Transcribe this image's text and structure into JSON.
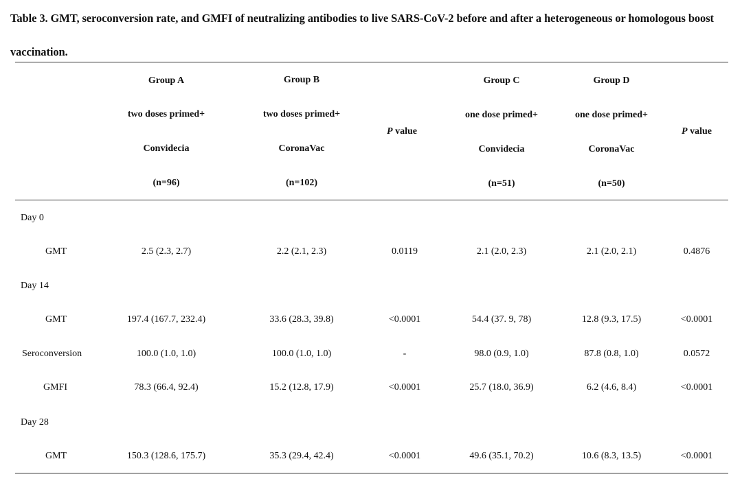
{
  "caption": "Table 3. GMT, seroconversion rate, and GMFI of neutralizing antibodies to live SARS-CoV-2 before and after a heterogeneous or homologous boost vaccination.",
  "header": {
    "groups": [
      {
        "name": "Group A",
        "desc": "two doses primed+",
        "vaccine": "Convidecia",
        "n": "(n=96)"
      },
      {
        "name": "Group B",
        "desc": "two doses primed+",
        "vaccine": "CoronaVac",
        "n": "(n=102)"
      },
      {
        "name": "Group C",
        "desc": "one dose primed+",
        "vaccine": "Convidecia",
        "n": "(n=51)"
      },
      {
        "name": "Group D",
        "desc": "one dose primed+",
        "vaccine": "CoronaVac",
        "n": "(n=50)"
      }
    ],
    "p_label_italic": "P",
    "p_label_rest": " value"
  },
  "rows": [
    {
      "label": "Day 0",
      "section": true
    },
    {
      "label": "GMT",
      "a": "2.5 (2.3, 2.7)",
      "b": "2.2 (2.1, 2.3)",
      "p1": "0.0119",
      "c": "2.1 (2.0, 2.3)",
      "d": "2.1 (2.0, 2.1)",
      "p2": "0.4876"
    },
    {
      "label": "Day 14",
      "section": true
    },
    {
      "label": "GMT",
      "a": "197.4 (167.7, 232.4)",
      "b": "33.6 (28.3, 39.8)",
      "p1": "<0.0001",
      "c": "54.4 (37. 9, 78)",
      "d": "12.8 (9.3, 17.5)",
      "p2": "<0.0001"
    },
    {
      "label": "Seroconversion",
      "a": "100.0 (1.0, 1.0)",
      "b": "100.0 (1.0, 1.0)",
      "p1": "-",
      "c": "98.0 (0.9, 1.0)",
      "d": "87.8 (0.8, 1.0)",
      "p2": "0.0572"
    },
    {
      "label": "GMFI",
      "a": "78.3 (66.4, 92.4)",
      "b": "15.2 (12.8, 17.9)",
      "p1": "<0.0001",
      "c": "25.7 (18.0, 36.9)",
      "d": "6.2 (4.6, 8.4)",
      "p2": "<0.0001"
    },
    {
      "label": "Day 28",
      "section": true
    },
    {
      "label": "GMT",
      "a": "150.3 (128.6, 175.7)",
      "b": "35.3 (29.4, 42.4)",
      "p1": "<0.0001",
      "c": "49.6 (35.1, 70.2)",
      "d": "10.6 (8.3, 13.5)",
      "p2": "<0.0001"
    }
  ]
}
